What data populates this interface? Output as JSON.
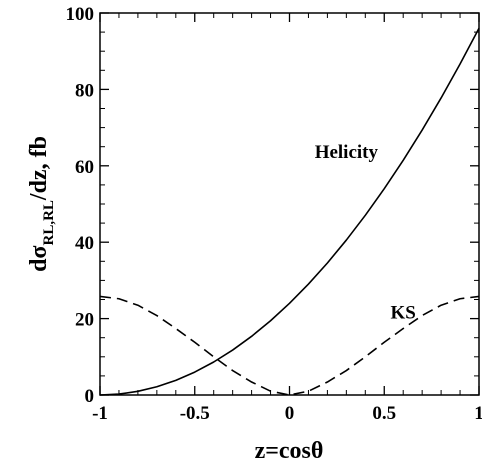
{
  "chart_data": {
    "type": "line",
    "title": "",
    "xlabel": "z=cosθ",
    "ylabel": {
      "main": "dσ",
      "subscript": "RL,RL",
      "tail": "/dz,   fb"
    },
    "xlim": [
      -1,
      1
    ],
    "ylim": [
      0,
      100
    ],
    "x_ticks": [
      -1,
      -0.5,
      0,
      0.5,
      1
    ],
    "x_tick_labels": [
      "-1",
      "-0.5",
      "0",
      "0.5",
      "1"
    ],
    "y_ticks": [
      0,
      20,
      40,
      60,
      80,
      100
    ],
    "y_tick_labels": [
      "0",
      "20",
      "40",
      "60",
      "80",
      "100"
    ],
    "grid": false,
    "legend": "none",
    "series": [
      {
        "name": "Helicity",
        "style": "solid",
        "color": "#000000",
        "x": [
          -1,
          -0.9,
          -0.8,
          -0.7,
          -0.6,
          -0.5,
          -0.4,
          -0.3,
          -0.2,
          -0.1,
          0,
          0.1,
          0.2,
          0.3,
          0.4,
          0.5,
          0.6,
          0.7,
          0.8,
          0.9,
          1
        ],
        "y": [
          0,
          0.24,
          0.96,
          2.16,
          3.84,
          6.0,
          8.64,
          11.76,
          15.36,
          19.44,
          24.0,
          29.04,
          34.56,
          40.56,
          47.04,
          54.0,
          61.44,
          69.36,
          77.76,
          86.64,
          96.0
        ]
      },
      {
        "name": "KS",
        "style": "dashed",
        "color": "#000000",
        "x": [
          -1,
          -0.9,
          -0.8,
          -0.7,
          -0.6,
          -0.5,
          -0.4,
          -0.3,
          -0.2,
          -0.1,
          0,
          0.1,
          0.2,
          0.3,
          0.4,
          0.5,
          0.6,
          0.7,
          0.8,
          0.9,
          1
        ],
        "y": [
          25.8,
          25.2,
          23.5,
          20.8,
          17.4,
          13.8,
          10.0,
          6.4,
          3.4,
          1.0,
          0,
          1.0,
          3.4,
          6.4,
          10.0,
          13.8,
          17.4,
          20.8,
          23.5,
          25.2,
          25.8
        ]
      }
    ],
    "annotations": [
      {
        "text": "Helicity",
        "x": 0.3,
        "y": 62
      },
      {
        "text": "KS",
        "x": 0.6,
        "y": 20
      }
    ]
  }
}
